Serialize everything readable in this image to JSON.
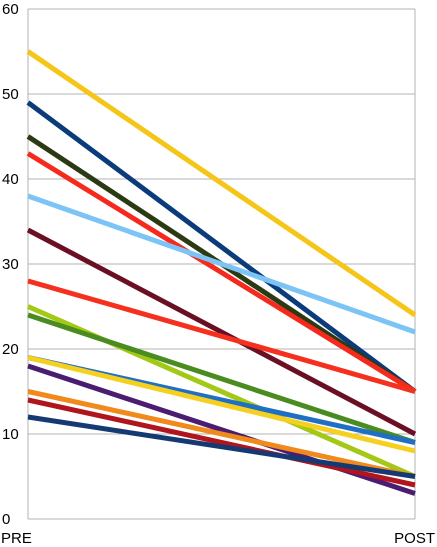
{
  "chart_data": {
    "type": "line",
    "title": "",
    "xlabel": "",
    "ylabel": "",
    "categories": [
      "PRE",
      "POST"
    ],
    "ylim": [
      0,
      60
    ],
    "yticks": [
      0,
      10,
      20,
      30,
      40,
      50,
      60
    ],
    "grid": true,
    "legend": "none",
    "series": [
      {
        "color": "#f5c518",
        "values": [
          55,
          24
        ]
      },
      {
        "color": "#0b3b7a",
        "values": [
          49,
          15
        ]
      },
      {
        "color": "#2b3a12",
        "values": [
          45,
          15
        ]
      },
      {
        "color": "#f52a1d",
        "values": [
          43,
          15
        ]
      },
      {
        "color": "#7cc4f5",
        "values": [
          38,
          22
        ]
      },
      {
        "color": "#6b0f24",
        "values": [
          34,
          10
        ]
      },
      {
        "color": "#f5301f",
        "values": [
          28,
          15
        ]
      },
      {
        "color": "#a3c816",
        "values": [
          25,
          5
        ]
      },
      {
        "color": "#4a8c20",
        "values": [
          24,
          9
        ]
      },
      {
        "color": "#1f6fc4",
        "values": [
          19,
          9
        ]
      },
      {
        "color": "#f5d020",
        "values": [
          19,
          8
        ]
      },
      {
        "color": "#4a1d73",
        "values": [
          18,
          3
        ]
      },
      {
        "color": "#f08a1c",
        "values": [
          15,
          5
        ]
      },
      {
        "color": "#b0141c",
        "values": [
          14,
          4
        ]
      },
      {
        "color": "#153a73",
        "values": [
          12,
          5
        ]
      }
    ]
  }
}
